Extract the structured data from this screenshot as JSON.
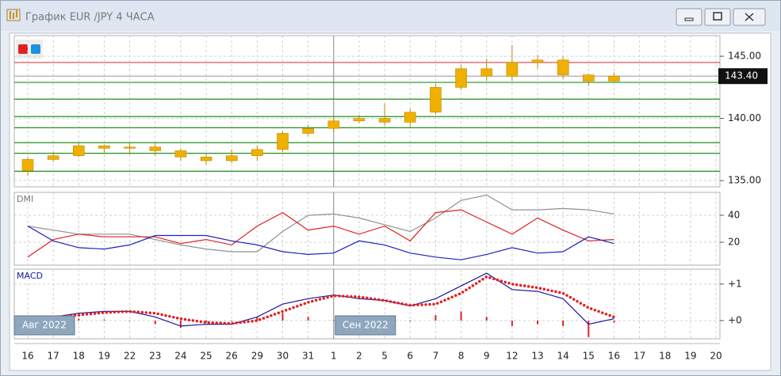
{
  "window": {
    "title": "График EUR /JPY  4 ЧАСА"
  },
  "chart_data": [
    {
      "type": "candlestick",
      "color": "#f0b000",
      "open": [
        135.8,
        136.7,
        137.0,
        137.8,
        137.6,
        137.7,
        137.4,
        136.9,
        136.6,
        137.0,
        137.5,
        138.8,
        139.2,
        139.8,
        140.0,
        139.7,
        140.5,
        142.5,
        144.0,
        143.4,
        144.5,
        144.7,
        143.5,
        143.0,
        null,
        null,
        null,
        null
      ],
      "high": [
        136.9,
        137.3,
        138.1,
        137.9,
        138.0,
        138.0,
        137.6,
        137.2,
        137.5,
        137.8,
        139.0,
        139.5,
        140.3,
        140.3,
        141.2,
        140.8,
        142.8,
        144.3,
        144.8,
        145.9,
        145.1,
        145.0,
        143.6,
        143.7,
        null,
        null,
        null,
        null
      ],
      "low": [
        135.4,
        136.5,
        136.9,
        137.2,
        137.1,
        137.0,
        136.6,
        136.3,
        136.4,
        136.6,
        137.3,
        138.6,
        138.9,
        139.6,
        139.4,
        139.3,
        140.3,
        142.3,
        143.0,
        143.0,
        144.0,
        143.2,
        142.6,
        142.9,
        null,
        null,
        null,
        null
      ],
      "close": [
        136.7,
        137.0,
        137.8,
        137.6,
        137.7,
        137.4,
        136.9,
        136.6,
        137.0,
        137.5,
        138.8,
        139.2,
        139.8,
        140.0,
        139.7,
        140.5,
        142.5,
        144.0,
        143.4,
        144.5,
        144.7,
        143.5,
        143.0,
        143.4,
        null,
        null,
        null,
        null
      ],
      "ylim": [
        134.5,
        146.66
      ],
      "yticks": [
        {
          "value": 135,
          "label": "135.00"
        },
        {
          "value": 140,
          "label": "140.00"
        },
        {
          "value": 145,
          "label": "145.00"
        }
      ],
      "hlines": [
        {
          "value": 144.5,
          "color": "#e04040"
        },
        {
          "value": 143.4,
          "color": "#a0a0a0"
        },
        {
          "value": 142.9,
          "color": "#209020"
        },
        {
          "value": 141.55,
          "color": "#209020"
        },
        {
          "value": 140.15,
          "color": "#209020"
        },
        {
          "value": 139.25,
          "color": "#209020"
        },
        {
          "value": 138.05,
          "color": "#209020"
        },
        {
          "value": 137.2,
          "color": "#209020"
        },
        {
          "value": 135.75,
          "color": "#209020"
        }
      ],
      "last_price": {
        "value": 143.4,
        "label": "143.40"
      },
      "grid": true
    },
    {
      "type": "line",
      "title": "DMI",
      "series": [
        {
          "color": "#909090",
          "values": [
            32,
            29,
            26,
            26,
            26,
            22,
            18,
            15,
            13,
            13,
            28,
            40,
            41,
            38,
            33,
            28,
            38,
            51,
            55,
            44,
            44,
            45,
            44,
            41,
            null,
            null,
            null,
            null
          ]
        },
        {
          "color": "#e02020",
          "values": [
            9,
            22,
            26,
            24,
            24,
            24,
            19,
            22,
            18,
            32,
            42,
            29,
            32,
            26,
            32,
            21,
            42,
            44,
            35,
            26,
            38,
            29,
            21,
            22,
            null,
            null,
            null,
            null
          ]
        },
        {
          "color": "#2020c0",
          "values": [
            32,
            21,
            16,
            15,
            18,
            25,
            25,
            25,
            21,
            18,
            13,
            11,
            12,
            21,
            18,
            12,
            9,
            7,
            11,
            16,
            12,
            13,
            24,
            19,
            null,
            null,
            null,
            null
          ]
        }
      ],
      "ylim": [
        3,
        57
      ],
      "yticks": [
        20,
        40
      ],
      "grid": true
    },
    {
      "type": "macd",
      "title": "MACD",
      "categories": [
        "16",
        "17",
        "18",
        "19",
        "22",
        "23",
        "24",
        "25",
        "26",
        "29",
        "30",
        "31",
        "1",
        "2",
        "5",
        "6",
        "7",
        "8",
        "9",
        "12",
        "13",
        "14",
        "15",
        "16",
        "17",
        "18",
        "19",
        "20"
      ],
      "annotations": [
        "Авг 2022",
        "Сен 2022"
      ],
      "histogram": {
        "color": "#e02020",
        "values": [
          0.05,
          0,
          0.05,
          0.03,
          0,
          -0.1,
          -0.2,
          -0.05,
          -0.02,
          0.1,
          0.2,
          0.1,
          0.02,
          -0.05,
          0,
          -0.02,
          0.15,
          0.25,
          0.1,
          -0.15,
          -0.1,
          -0.15,
          -0.45,
          -0.05,
          null,
          null,
          null,
          null
        ]
      },
      "series": [
        {
          "color": "#1818a0",
          "values": [
            0.04,
            0.1,
            0.2,
            0.25,
            0.25,
            0.1,
            -0.15,
            -0.1,
            -0.1,
            0.1,
            0.45,
            0.6,
            0.7,
            0.6,
            0.55,
            0.4,
            0.6,
            0.95,
            1.3,
            0.85,
            0.8,
            0.6,
            -0.1,
            0.05,
            null,
            null,
            null,
            null
          ]
        },
        {
          "color": "#e02020",
          "style": "dotted",
          "values": [
            0,
            0.1,
            0.15,
            0.22,
            0.25,
            0.2,
            0.05,
            -0.05,
            -0.08,
            0,
            0.25,
            0.5,
            0.68,
            0.65,
            0.55,
            0.42,
            0.45,
            0.75,
            1.2,
            1.0,
            0.9,
            0.75,
            0.35,
            0.1,
            null,
            null,
            null,
            null
          ]
        }
      ],
      "ylim": [
        -0.5,
        1.41
      ],
      "yticks": [
        {
          "value": 1,
          "label": "+1"
        },
        {
          "value": 0,
          "label": "+0"
        }
      ],
      "grid": true
    }
  ]
}
